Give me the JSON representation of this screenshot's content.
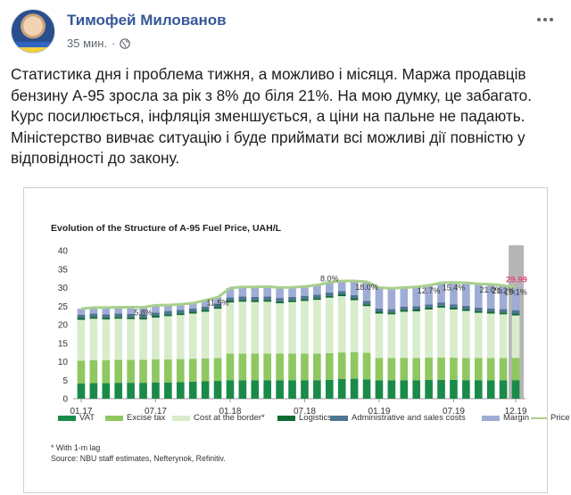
{
  "post": {
    "author": "Тимофей Милованов",
    "time": "35 мин.",
    "privacy_icon": "globe-icon",
    "text_lines": [
      "Статистика дня і проблема тижня, а можливо і місяця. Маржа продавців",
      "бензину А-95 зросла за рік з 8% до біля 21%. На мою думку, це забагато.",
      "Курс посилюється, інфляція зменшується, а ціни на пальне не падають.",
      "Міністерство вивчає ситуацію і буде приймати всі можливі дії повністю у",
      "відповідності до закону."
    ]
  },
  "colors": {
    "vat": "#1a8a4a",
    "excise": "#8fc760",
    "cost": "#d8eccc",
    "logistics": "#0f6b33",
    "admin": "#4e7591",
    "margin": "#9eacd6",
    "price": "#a8d08d",
    "forecast_shade": "#a8a8a8",
    "last_value": "#e0457b"
  },
  "chart_data": {
    "type": "bar",
    "stacked": true,
    "title": "Evolution of the Structure of A-95 Fuel Price, UAH/L",
    "y_ticks": [
      "0",
      "5",
      "10",
      "15",
      "20",
      "25",
      "30",
      "35",
      "40"
    ],
    "ylim": [
      0,
      40
    ],
    "x_tick_labels": [
      "01.17",
      "07.17",
      "01.18",
      "07.18",
      "01.19",
      "07.19",
      "12.19"
    ],
    "x_tick_positions": [
      0,
      6,
      12,
      18,
      24,
      30,
      35
    ],
    "categories": [
      "01.17",
      "02.17",
      "03.17",
      "04.17",
      "05.17",
      "06.17",
      "07.17",
      "08.17",
      "09.17",
      "10.17",
      "11.17",
      "12.17",
      "01.18",
      "02.18",
      "03.18",
      "04.18",
      "05.18",
      "06.18",
      "07.18",
      "08.18",
      "09.18",
      "10.18",
      "11.18",
      "12.18",
      "01.19",
      "02.19",
      "03.19",
      "04.19",
      "05.19",
      "06.19",
      "07.19",
      "08.19",
      "09.19",
      "10.19",
      "11.19",
      "12.19"
    ],
    "series": [
      {
        "name": "VAT",
        "values": [
          4.1,
          4.2,
          4.2,
          4.3,
          4.3,
          4.3,
          4.4,
          4.4,
          4.5,
          4.6,
          4.7,
          4.8,
          5.0,
          5.0,
          5.0,
          5.0,
          5.0,
          5.0,
          5.0,
          5.0,
          5.1,
          5.3,
          5.4,
          5.2,
          5.0,
          5.0,
          5.0,
          5.0,
          5.1,
          5.1,
          5.1,
          5.0,
          5.0,
          5.0,
          5.0,
          5.0
        ]
      },
      {
        "name": "Excise tax",
        "values": [
          6.2,
          6.2,
          6.2,
          6.2,
          6.2,
          6.2,
          6.2,
          6.2,
          6.2,
          6.2,
          6.2,
          6.2,
          7.2,
          7.2,
          7.2,
          7.2,
          7.2,
          7.2,
          7.2,
          7.2,
          7.2,
          7.2,
          7.2,
          7.2,
          6.0,
          6.0,
          6.0,
          6.0,
          6.0,
          6.0,
          6.0,
          6.0,
          6.0,
          6.0,
          6.0,
          6.0
        ]
      },
      {
        "name": "Cost at the border*",
        "values": [
          11.0,
          11.2,
          11.0,
          11.1,
          11.0,
          10.9,
          11.3,
          11.7,
          11.9,
          12.2,
          12.6,
          13.3,
          13.8,
          14.0,
          13.9,
          14.0,
          13.6,
          13.9,
          14.2,
          14.5,
          15.0,
          15.2,
          14.0,
          12.6,
          12.0,
          11.8,
          12.5,
          12.6,
          13.0,
          13.5,
          13.0,
          12.7,
          12.2,
          12.0,
          11.8,
          11.5
        ]
      },
      {
        "name": "Logistics",
        "values": [
          0.5,
          0.5,
          0.5,
          0.5,
          0.5,
          0.5,
          0.5,
          0.5,
          0.5,
          0.5,
          0.5,
          0.5,
          0.5,
          0.5,
          0.5,
          0.5,
          0.5,
          0.5,
          0.5,
          0.5,
          0.5,
          0.5,
          0.5,
          0.5,
          0.5,
          0.5,
          0.5,
          0.5,
          0.5,
          0.5,
          0.5,
          0.5,
          0.5,
          0.5,
          0.5,
          0.5
        ]
      },
      {
        "name": "Administrative and sales costs",
        "values": [
          0.9,
          0.9,
          0.9,
          0.9,
          0.9,
          0.9,
          0.9,
          0.9,
          0.9,
          0.9,
          0.9,
          0.9,
          0.9,
          0.9,
          0.9,
          0.9,
          0.9,
          0.9,
          0.9,
          0.9,
          0.9,
          0.9,
          0.9,
          0.9,
          0.9,
          0.9,
          0.9,
          0.9,
          0.9,
          0.9,
          0.9,
          0.9,
          0.9,
          0.9,
          0.9,
          0.9
        ]
      },
      {
        "name": "Margin",
        "values": [
          1.6,
          1.6,
          1.8,
          1.7,
          1.8,
          1.9,
          1.9,
          1.6,
          1.5,
          1.4,
          1.7,
          1.7,
          2.5,
          2.6,
          2.7,
          2.7,
          2.8,
          2.6,
          2.5,
          2.6,
          2.7,
          2.6,
          3.8,
          5.2,
          5.6,
          5.6,
          5.0,
          5.2,
          5.1,
          5.3,
          5.9,
          6.2,
          6.4,
          6.5,
          6.4,
          6.3
        ]
      }
    ],
    "price": [
      24.3,
      24.6,
      24.6,
      24.7,
      24.7,
      24.7,
      25.2,
      25.3,
      25.5,
      25.8,
      26.6,
      27.4,
      29.9,
      30.2,
      30.2,
      30.3,
      30.0,
      30.1,
      30.3,
      30.7,
      31.4,
      31.8,
      31.8,
      31.6,
      30.0,
      29.8,
      30.0,
      30.2,
      30.6,
      31.3,
      31.4,
      31.3,
      31.0,
      30.9,
      30.6,
      29.99
    ],
    "annotations": [
      {
        "index": 5,
        "text": "5.8%"
      },
      {
        "index": 11,
        "text": "11.5%"
      },
      {
        "index": 20,
        "text": "8.0%"
      },
      {
        "index": 23,
        "text": "18.0%"
      },
      {
        "index": 28,
        "text": "12.7%"
      },
      {
        "index": 30,
        "text": "15.4%"
      },
      {
        "index": 33,
        "text": "21.0%"
      },
      {
        "index": 34,
        "text": "21.2%"
      },
      {
        "index": 35,
        "text": "19.1%"
      }
    ],
    "last_value_label": "29.99",
    "forecast_shaded": true,
    "grid": false,
    "legend_position": "bottom",
    "legend": [
      {
        "label": "VAT",
        "kind": "bar",
        "color_key": "vat"
      },
      {
        "label": "Excise tax",
        "kind": "bar",
        "color_key": "excise"
      },
      {
        "label": "Cost at the border*",
        "kind": "bar",
        "color_key": "cost"
      },
      {
        "label": "Logistics",
        "kind": "bar",
        "color_key": "logistics"
      },
      {
        "label": "Administrative and sales costs",
        "kind": "bar",
        "color_key": "admin"
      },
      {
        "label": "Margin",
        "kind": "bar",
        "color_key": "margin"
      },
      {
        "label": "Price",
        "kind": "line",
        "color_key": "price"
      }
    ],
    "footnote_lines": [
      "* With 1-m lag",
      "Source: NBU staff estimates, Nefterynok, Refinitiv."
    ]
  }
}
